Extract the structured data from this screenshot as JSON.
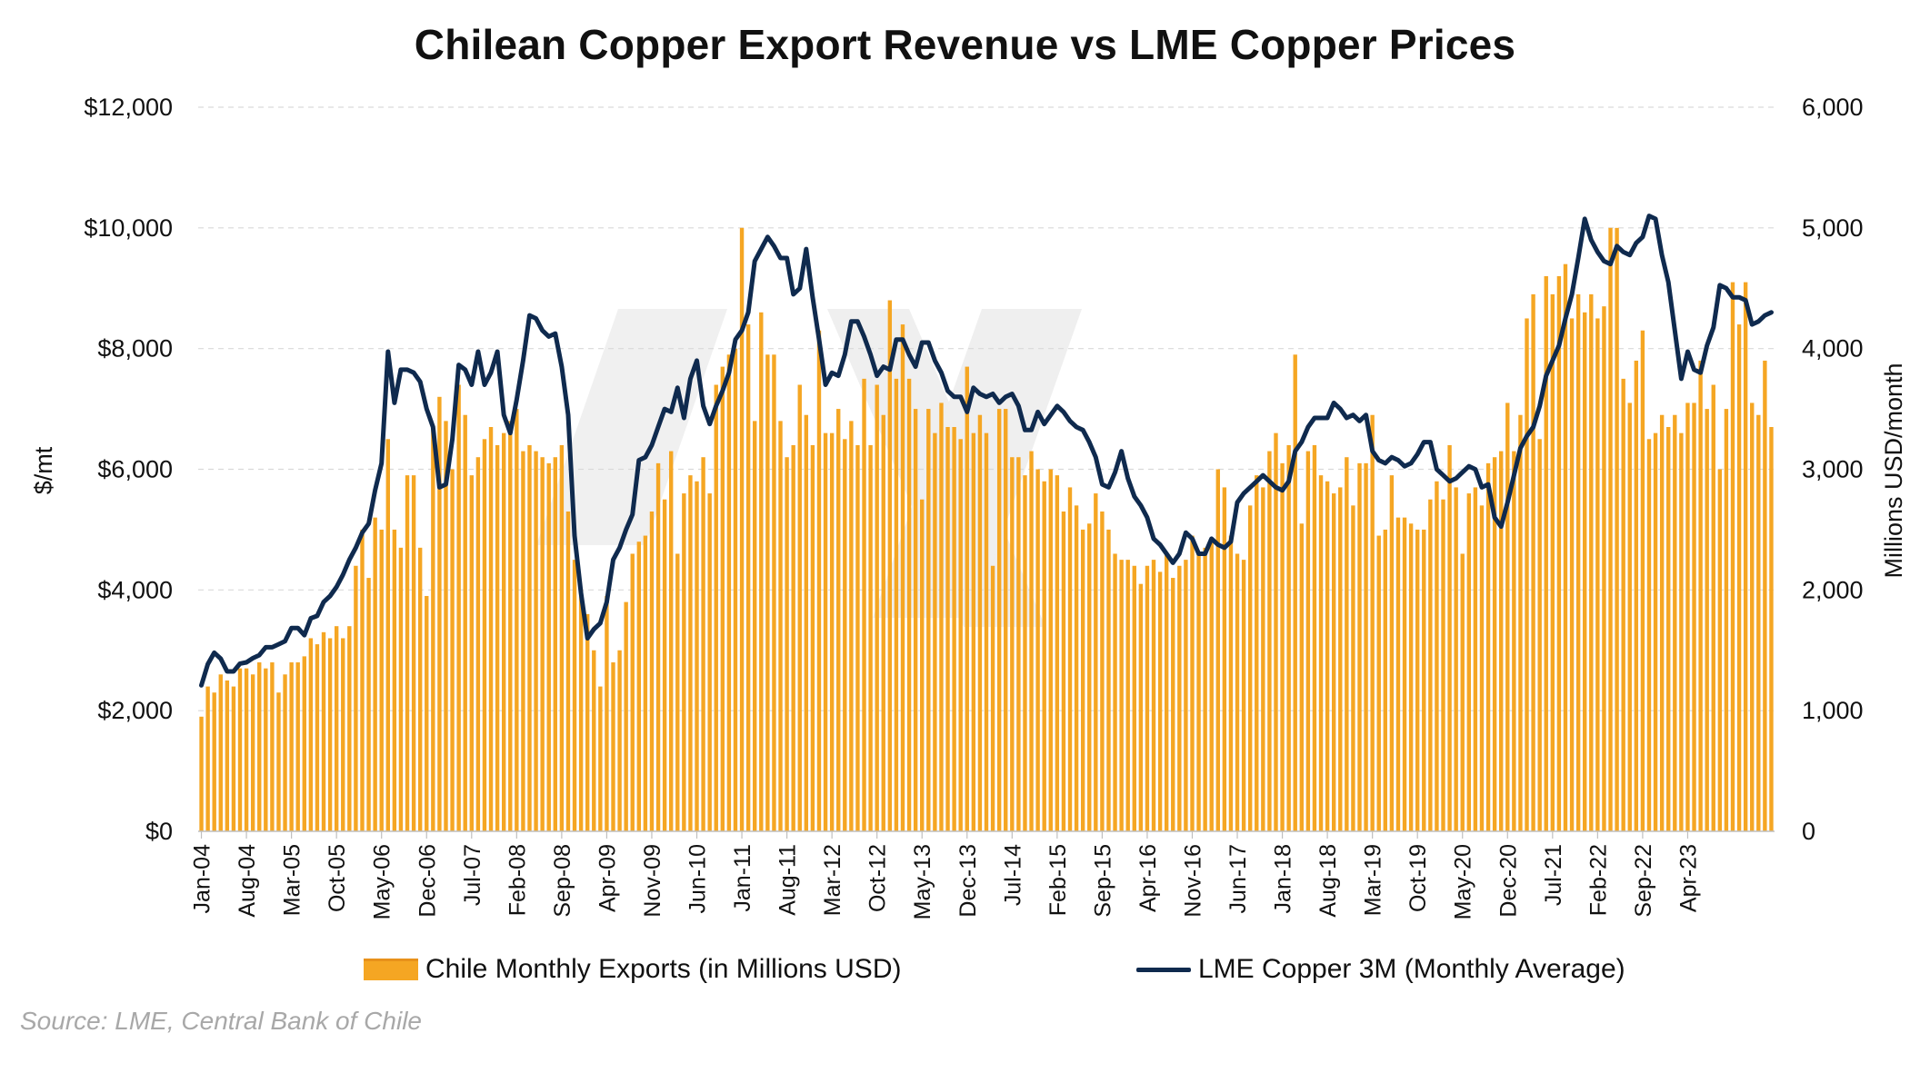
{
  "chart_data": {
    "type": "bar+line",
    "title": "Chilean Copper Export Revenue vs LME Copper Prices",
    "y_left_label": "$/mt",
    "y_right_label": "Millions USD/month",
    "y_left_ticks": [
      "$0",
      "$2,000",
      "$4,000",
      "$6,000",
      "$8,000",
      "$10,000",
      "$12,000"
    ],
    "y_right_ticks": [
      "0",
      "1,000",
      "2,000",
      "3,000",
      "4,000",
      "5,000",
      "6,000"
    ],
    "ylim_left": [
      0,
      12000
    ],
    "ylim_right": [
      0,
      6000
    ],
    "x_tick_labels": [
      "Jan-04",
      "Aug-04",
      "Mar-05",
      "Oct-05",
      "May-06",
      "Dec-06",
      "Jul-07",
      "Feb-08",
      "Sep-08",
      "Apr-09",
      "Nov-09",
      "Jun-10",
      "Jan-11",
      "Aug-11",
      "Mar-12",
      "Oct-12",
      "May-13",
      "Dec-13",
      "Jul-14",
      "Feb-15",
      "Sep-15",
      "Apr-16",
      "Nov-16",
      "Jun-17",
      "Jan-18",
      "Aug-18",
      "Mar-19",
      "Oct-19",
      "May-20",
      "Dec-20",
      "Jul-21",
      "Feb-22",
      "Sep-22",
      "Apr-23"
    ],
    "x_start": "Jan-04",
    "x_end": "Nov-23",
    "grid": "horizontal dashed",
    "legend_position": "bottom",
    "series": [
      {
        "name": "Chile Monthly Exports (in Millions USD)",
        "type": "bar",
        "axis": "right",
        "color": "#F5A623",
        "values": [
          950,
          1200,
          1150,
          1300,
          1250,
          1200,
          1350,
          1350,
          1300,
          1400,
          1350,
          1400,
          1150,
          1300,
          1400,
          1400,
          1450,
          1600,
          1550,
          1650,
          1600,
          1700,
          1600,
          1700,
          2200,
          2500,
          2100,
          2600,
          2500,
          3250,
          2500,
          2350,
          2950,
          2950,
          2350,
          1950,
          3350,
          3600,
          3400,
          3000,
          3700,
          3450,
          2950,
          3100,
          3250,
          3350,
          3200,
          3300,
          3400,
          3500,
          3150,
          3200,
          3150,
          3100,
          3050,
          3100,
          3200,
          2650,
          2250,
          2000,
          1800,
          1500,
          1200,
          1950,
          1400,
          1500,
          1900,
          2300,
          2400,
          2450,
          2650,
          3050,
          2750,
          3150,
          2300,
          2800,
          2950,
          2900,
          3100,
          2800,
          3700,
          3850,
          3950,
          4000,
          5000,
          4200,
          3400,
          4300,
          3950,
          3950,
          3400,
          3100,
          3200,
          3700,
          3450,
          3200,
          4150,
          3300,
          3300,
          3500,
          3250,
          3400,
          3200,
          3750,
          3200,
          3700,
          3450,
          4400,
          3750,
          4200,
          3750,
          3500,
          2750,
          3500,
          3300,
          3550,
          3350,
          3350,
          3250,
          3850,
          3300,
          3450,
          3300,
          2200,
          3500,
          3500,
          3100,
          3100,
          2950,
          3150,
          3000,
          2900,
          3000,
          2950,
          2650,
          2850,
          2700,
          2500,
          2550,
          2800,
          2650,
          2500,
          2300,
          2250,
          2250,
          2200,
          2050,
          2200,
          2250,
          2150,
          2300,
          2100,
          2200,
          2250,
          2450,
          2300,
          2350,
          2400,
          3000,
          2850,
          2450,
          2300,
          2250,
          2700,
          2950,
          2850,
          3150,
          3300,
          3050,
          3200,
          3950,
          2550,
          3150,
          3200,
          2950,
          2900,
          2800,
          2850,
          3100,
          2700,
          3050,
          3050,
          3450,
          2450,
          2500,
          2950,
          2600,
          2600,
          2550,
          2500,
          2500,
          2750,
          2900,
          2750,
          3200,
          2850,
          2300,
          2800,
          2850,
          2700,
          3050,
          3100,
          3150,
          3550,
          3150,
          3450,
          4250,
          4450,
          3250,
          4600,
          4450,
          4600,
          4700,
          4250,
          4450,
          4300,
          4450,
          4250,
          4350,
          5000,
          5000,
          3750,
          3550,
          3900,
          4150,
          3250,
          3300,
          3450,
          3350,
          3450,
          3300,
          3550,
          3550,
          3900,
          3500,
          3700,
          3000,
          3500,
          4550,
          4200,
          4550,
          3550,
          3450,
          3900,
          3350
        ],
        "note": "values in Millions USD/month (right axis)"
      },
      {
        "name": "LME Copper 3M (Monthly Average)",
        "type": "line",
        "axis": "left",
        "color": "#0F2A4E",
        "values": [
          2420,
          2770,
          2960,
          2860,
          2650,
          2650,
          2780,
          2800,
          2870,
          2920,
          3050,
          3050,
          3100,
          3150,
          3370,
          3370,
          3250,
          3530,
          3570,
          3800,
          3900,
          4050,
          4250,
          4500,
          4700,
          4950,
          5100,
          5650,
          6100,
          7950,
          7100,
          7650,
          7650,
          7600,
          7450,
          7000,
          6700,
          5700,
          5750,
          6500,
          7730,
          7650,
          7400,
          7950,
          7400,
          7600,
          7950,
          6900,
          6600,
          7150,
          7800,
          8550,
          8500,
          8300,
          8200,
          8250,
          7700,
          6900,
          4900,
          3950,
          3200,
          3350,
          3450,
          3800,
          4500,
          4700,
          5000,
          5250,
          6150,
          6200,
          6400,
          6700,
          7000,
          6950,
          7350,
          6850,
          7500,
          7800,
          7050,
          6750,
          7050,
          7300,
          7600,
          8150,
          8300,
          8600,
          9450,
          9650,
          9850,
          9700,
          9500,
          9500,
          8900,
          9000,
          9650,
          8850,
          8150,
          7400,
          7600,
          7550,
          7900,
          8450,
          8450,
          8200,
          7900,
          7550,
          7700,
          7650,
          8150,
          8150,
          7900,
          7700,
          8100,
          8100,
          7800,
          7600,
          7300,
          7200,
          7200,
          6950,
          7350,
          7250,
          7200,
          7250,
          7100,
          7200,
          7250,
          7050,
          6650,
          6650,
          6950,
          6750,
          6900,
          7050,
          6950,
          6800,
          6700,
          6650,
          6450,
          6200,
          5750,
          5700,
          5950,
          6300,
          5850,
          5550,
          5400,
          5200,
          4850,
          4750,
          4600,
          4450,
          4600,
          4950,
          4850,
          4600,
          4600,
          4850,
          4750,
          4700,
          4800,
          5450,
          5600,
          5700,
          5800,
          5900,
          5800,
          5700,
          5650,
          5800,
          6300,
          6450,
          6700,
          6850,
          6850,
          6850,
          7100,
          7000,
          6850,
          6900,
          6800,
          6900,
          6300,
          6150,
          6100,
          6200,
          6150,
          6050,
          6100,
          6250,
          6450,
          6450,
          6000,
          5900,
          5800,
          5850,
          5950,
          6050,
          6000,
          5700,
          5750,
          5200,
          5050,
          5450,
          5900,
          6350,
          6550,
          6700,
          7050,
          7550,
          7800,
          8050,
          8500,
          8900,
          9500,
          10150,
          9800,
          9600,
          9450,
          9400,
          9700,
          9600,
          9550,
          9750,
          9850,
          10200,
          10150,
          9550,
          9100,
          8300,
          7500,
          7950,
          7650,
          7600,
          8050,
          8350,
          9050,
          9000,
          8850,
          8850,
          8800,
          8400,
          8450,
          8550,
          8600
        ],
        "note": "values in $/mt (left axis)"
      }
    ]
  },
  "legend": {
    "bar_label": "Chile Monthly Exports (in Millions USD)",
    "line_label": "LME Copper 3M (Monthly Average)"
  },
  "source": "Source: LME, Central Bank of Chile"
}
